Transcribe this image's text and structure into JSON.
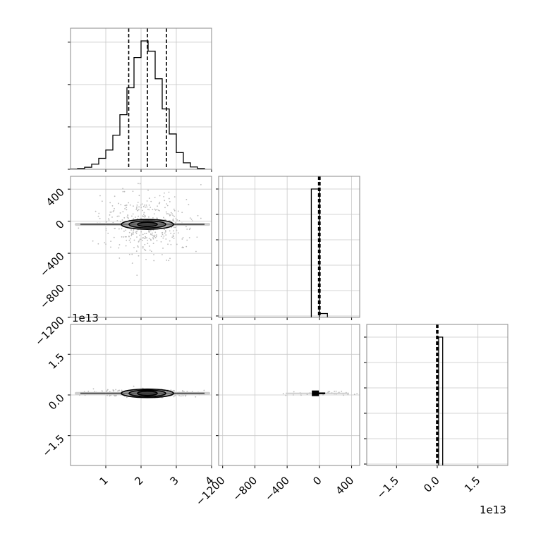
{
  "chart_data": {
    "type": "corner",
    "grid": true,
    "panels": [
      {
        "kind": "histogram",
        "row": 0,
        "col": 0,
        "xlim": [
          0.0,
          4.0
        ],
        "ylim": [
          0,
          1.0
        ],
        "bins": [
          0.2,
          0.4,
          0.6,
          0.8,
          1.0,
          1.2,
          1.4,
          1.6,
          1.8,
          2.0,
          2.2,
          2.4,
          2.6,
          2.8,
          3.0,
          3.2,
          3.4,
          3.6,
          3.8,
          4.0
        ],
        "counts": [
          0.002,
          0.006,
          0.016,
          0.04,
          0.085,
          0.15,
          0.265,
          0.425,
          0.635,
          0.87,
          1.0,
          0.92,
          0.705,
          0.47,
          0.275,
          0.13,
          0.05,
          0.018,
          0.006
        ],
        "quantiles": [
          1.65,
          2.18,
          2.72
        ]
      },
      {
        "kind": "scatter2d",
        "row": 1,
        "col": 0,
        "xlim": [
          0.0,
          4.0
        ],
        "ylim": [
          -1200,
          560
        ],
        "yticks": [
          "400",
          "0",
          "−400",
          "−800",
          "−1200"
        ],
        "yticks_values": [
          400,
          0,
          -400,
          -800,
          -1200
        ],
        "center": [
          2.18,
          -40
        ],
        "x_spread": 0.75,
        "y_spread": 25
      },
      {
        "kind": "histogram",
        "row": 1,
        "col": 1,
        "xlim": [
          -1250,
          500
        ],
        "ylim": [
          0,
          1.0
        ],
        "bins_edges": [
          -100,
          0,
          100
        ],
        "counts": [
          1.0,
          0.03
        ],
        "quantiles": [
          -2,
          -1,
          0
        ]
      },
      {
        "kind": "scatter2d",
        "row": 2,
        "col": 0,
        "xlim": [
          0.0,
          4.0
        ],
        "ylim": [
          -2.6,
          2.6
        ],
        "yticks": [
          "1.5",
          "0.0",
          "−1.5"
        ],
        "yticks_values": [
          1.5,
          0.0,
          -1.5
        ],
        "center": [
          2.18,
          0.06
        ],
        "x_spread": 0.75,
        "y_spread": 0.06
      },
      {
        "kind": "scatter2d",
        "row": 2,
        "col": 1,
        "xlim": [
          -1250,
          500
        ],
        "ylim": [
          -2.6,
          2.6
        ],
        "center": [
          -50,
          0.06
        ],
        "x_spread": 30,
        "y_spread": 0.04
      },
      {
        "kind": "histogram",
        "row": 2,
        "col": 2,
        "xlim": [
          -2.6,
          2.6
        ],
        "ylim": [
          0,
          1.0
        ],
        "bins_edges": [
          -0.05,
          0.05,
          0.2
        ],
        "counts": [
          0.0,
          1.0
        ],
        "quantiles": [
          0.0,
          0.0,
          0.0
        ]
      }
    ],
    "x_axes": [
      {
        "col": 0,
        "ticks": [
          "1",
          "2",
          "3",
          "4"
        ],
        "values": [
          1,
          2,
          3,
          4
        ]
      },
      {
        "col": 1,
        "ticks": [
          "−1200",
          "−800",
          "−400",
          "0",
          "400"
        ],
        "values": [
          -1200,
          -800,
          -400,
          0,
          400
        ]
      },
      {
        "col": 2,
        "ticks": [
          "−1.5",
          "0.0",
          "1.5"
        ],
        "values": [
          -1.5,
          0.0,
          1.5
        ]
      }
    ],
    "offset_labels": {
      "y_bottom_row": "1e13",
      "x_third_col": "1e13"
    }
  }
}
